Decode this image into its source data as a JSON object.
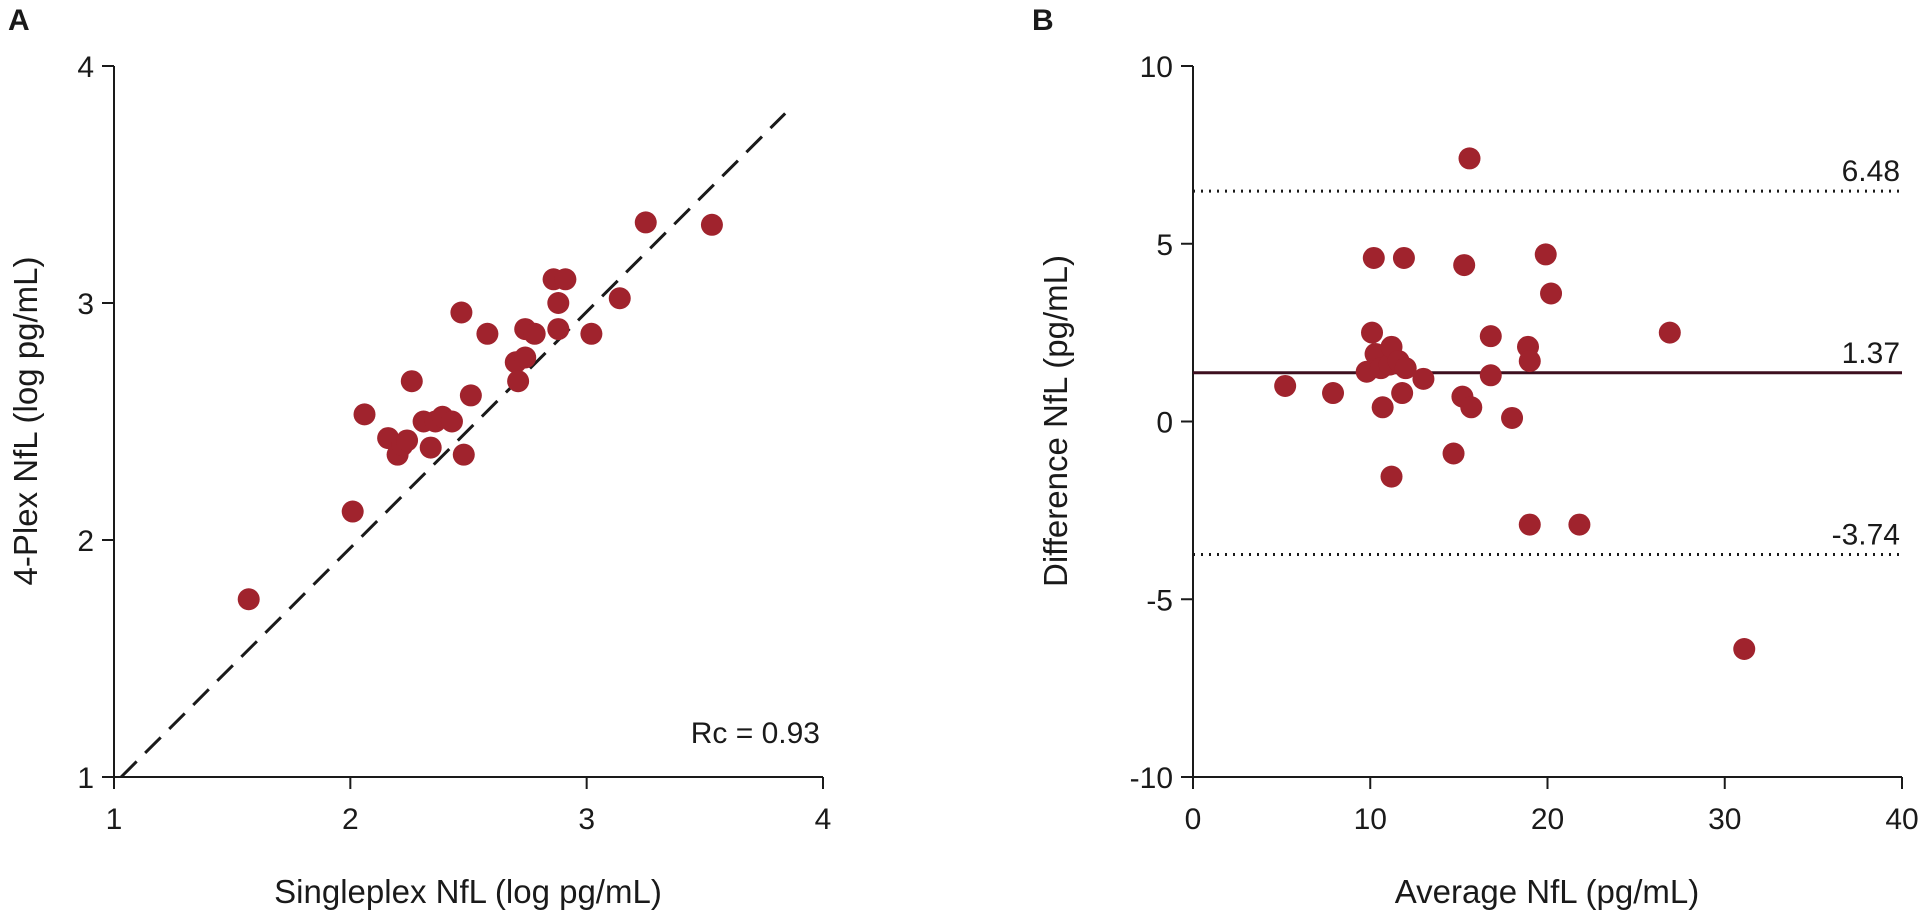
{
  "colors": {
    "point": "#a0232d",
    "axis": "#1a1a1a",
    "mean_line": "#3d0f1f",
    "limit_line": "#1a1a1a",
    "identity_line": "#1a1a1a"
  },
  "chart_data": [
    {
      "panel": "A",
      "type": "scatter",
      "title": "",
      "xlabel": "Singleplex NfL (log pg/mL)",
      "ylabel": "4-Plex NfL (log pg/mL)",
      "xlim": [
        1,
        4
      ],
      "ylim": [
        1,
        4
      ],
      "xticks": [
        "1",
        "2",
        "3",
        "4"
      ],
      "yticks": [
        "1",
        "2",
        "3",
        "4"
      ],
      "identity_line": {
        "style": "dashed",
        "from": [
          1.03,
          1
        ],
        "to": [
          3.84,
          3.8
        ]
      },
      "annotation": "Rc = 0.93",
      "points": [
        {
          "x": 1.57,
          "y": 1.75
        },
        {
          "x": 2.01,
          "y": 2.12
        },
        {
          "x": 2.06,
          "y": 2.53
        },
        {
          "x": 2.16,
          "y": 2.43
        },
        {
          "x": 2.2,
          "y": 2.36
        },
        {
          "x": 2.22,
          "y": 2.4
        },
        {
          "x": 2.24,
          "y": 2.42
        },
        {
          "x": 2.26,
          "y": 2.67
        },
        {
          "x": 2.31,
          "y": 2.5
        },
        {
          "x": 2.34,
          "y": 2.39
        },
        {
          "x": 2.36,
          "y": 2.5
        },
        {
          "x": 2.39,
          "y": 2.52
        },
        {
          "x": 2.43,
          "y": 2.5
        },
        {
          "x": 2.47,
          "y": 2.96
        },
        {
          "x": 2.48,
          "y": 2.36
        },
        {
          "x": 2.51,
          "y": 2.61
        },
        {
          "x": 2.58,
          "y": 2.87
        },
        {
          "x": 2.7,
          "y": 2.75
        },
        {
          "x": 2.71,
          "y": 2.67
        },
        {
          "x": 2.74,
          "y": 2.77
        },
        {
          "x": 2.74,
          "y": 2.89
        },
        {
          "x": 2.78,
          "y": 2.87
        },
        {
          "x": 2.86,
          "y": 3.1
        },
        {
          "x": 2.88,
          "y": 2.89
        },
        {
          "x": 2.88,
          "y": 3.0
        },
        {
          "x": 2.91,
          "y": 3.1
        },
        {
          "x": 3.02,
          "y": 2.87
        },
        {
          "x": 3.14,
          "y": 3.02
        },
        {
          "x": 3.25,
          "y": 3.34
        },
        {
          "x": 3.53,
          "y": 3.33
        }
      ]
    },
    {
      "panel": "B",
      "type": "scatter",
      "title": "",
      "xlabel": "Average NfL (pg/mL)",
      "ylabel": "Difference NfL (pg/mL)",
      "xlim": [
        0,
        40
      ],
      "ylim": [
        -10,
        10
      ],
      "xticks": [
        "0",
        "10",
        "20",
        "30",
        "40"
      ],
      "yticks": [
        "-10",
        "-5",
        "0",
        "5",
        "10"
      ],
      "reference_lines": [
        {
          "value": 6.48,
          "label": "6.48",
          "style": "dotted"
        },
        {
          "value": 1.37,
          "label": "1.37",
          "style": "solid"
        },
        {
          "value": -3.74,
          "label": "-3.74",
          "style": "dotted"
        }
      ],
      "points": [
        {
          "x": 5.2,
          "y": 1.0
        },
        {
          "x": 7.9,
          "y": 0.8
        },
        {
          "x": 9.8,
          "y": 1.4
        },
        {
          "x": 10.1,
          "y": 2.5
        },
        {
          "x": 10.2,
          "y": 4.6
        },
        {
          "x": 10.3,
          "y": 1.9
        },
        {
          "x": 10.6,
          "y": 1.5
        },
        {
          "x": 10.7,
          "y": 0.4
        },
        {
          "x": 11.1,
          "y": 1.6
        },
        {
          "x": 11.2,
          "y": 2.1
        },
        {
          "x": 11.2,
          "y": -1.55
        },
        {
          "x": 11.6,
          "y": 1.7
        },
        {
          "x": 11.8,
          "y": 0.8
        },
        {
          "x": 11.9,
          "y": 4.6
        },
        {
          "x": 12.0,
          "y": 1.5
        },
        {
          "x": 13.0,
          "y": 1.2
        },
        {
          "x": 14.7,
          "y": -0.9
        },
        {
          "x": 15.2,
          "y": 0.7
        },
        {
          "x": 15.3,
          "y": 4.4
        },
        {
          "x": 15.6,
          "y": 7.4
        },
        {
          "x": 15.7,
          "y": 0.4
        },
        {
          "x": 16.8,
          "y": 2.4
        },
        {
          "x": 16.8,
          "y": 1.3
        },
        {
          "x": 18.0,
          "y": 0.1
        },
        {
          "x": 18.9,
          "y": 2.1
        },
        {
          "x": 19.0,
          "y": 1.7
        },
        {
          "x": 19.0,
          "y": -2.9
        },
        {
          "x": 19.9,
          "y": 4.7
        },
        {
          "x": 20.2,
          "y": 3.6
        },
        {
          "x": 21.8,
          "y": -2.9
        },
        {
          "x": 26.9,
          "y": 2.5
        },
        {
          "x": 31.1,
          "y": -6.4
        }
      ]
    }
  ]
}
